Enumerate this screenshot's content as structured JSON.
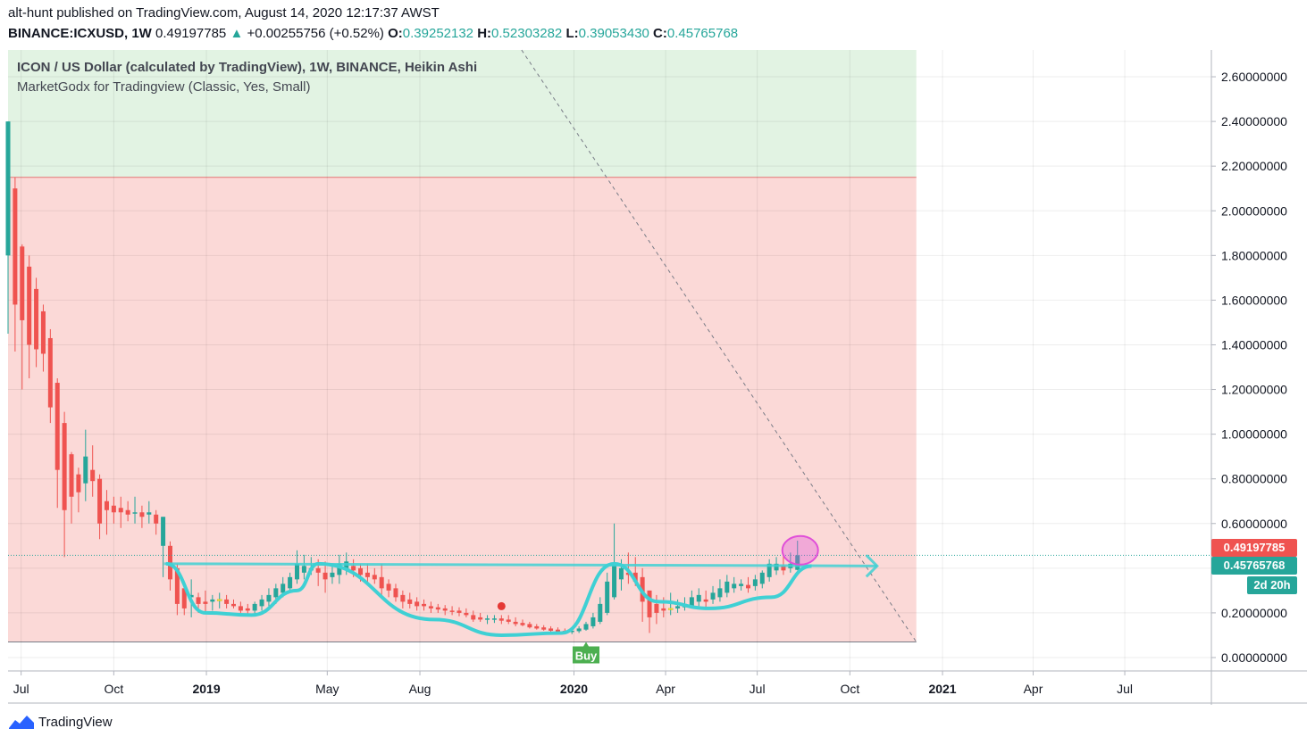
{
  "header": {
    "line1": "alt-hunt published on TradingView.com, August 14, 2020 12:17:37 AWST",
    "symbol": "BINANCE:ICXUSD, 1W",
    "last_price": "0.49197785",
    "change_arrow": "▲",
    "change": "+0.00255756 (+0.52%)",
    "o_label": "O:",
    "o_value": "0.39252132",
    "h_label": "H:",
    "h_value": "0.52303282",
    "l_label": "L:",
    "l_value": "0.39053430",
    "c_label": "C:",
    "c_value": "0.45765768"
  },
  "legend": {
    "series": "ICON / US Dollar (calculated by TradingView), 1W, BINANCE, Heikin Ashi",
    "indicator": "MarketGodx for Tradingview (Classic, Yes, Small)"
  },
  "price_tags": {
    "last": "0.49197785",
    "close": "0.45765768",
    "countdown": "2d 20h"
  },
  "buy_label": "Buy",
  "footer": {
    "brand": "TradingView",
    "logo_icon": "tradingview-logo-icon"
  },
  "colors": {
    "up": "#26a69a",
    "down": "#ef5350",
    "neutral": "#ffeb3b",
    "green_zone": "#e2f3e3",
    "red_zone": "#fbd9d7",
    "pattern": "#3fd0d4",
    "highlight": "#e04fd8",
    "last_tag": "#ef5350",
    "close_tag": "#26a69a"
  },
  "chart_data": {
    "type": "candlestick",
    "title": "ICON / US Dollar (calculated by TradingView), 1W, BINANCE, Heikin Ashi",
    "y_ticks": [
      "2.60000000",
      "2.40000000",
      "2.20000000",
      "2.00000000",
      "1.80000000",
      "1.60000000",
      "1.40000000",
      "1.20000000",
      "1.00000000",
      "0.80000000",
      "0.60000000",
      "0.40000000",
      "0.20000000",
      "0.00000000"
    ],
    "y_tick_values": [
      2.6,
      2.4,
      2.2,
      2.0,
      1.8,
      1.6,
      1.4,
      1.2,
      1.0,
      0.8,
      0.6,
      0.4,
      0.2,
      0.0
    ],
    "x_ticks": [
      {
        "label": "Jul",
        "date": "2018-07-01",
        "bold": false
      },
      {
        "label": "Oct",
        "date": "2018-10-01",
        "bold": false
      },
      {
        "label": "2019",
        "date": "2019-01-01",
        "bold": true
      },
      {
        "label": "May",
        "date": "2019-05-01",
        "bold": false
      },
      {
        "label": "Aug",
        "date": "2019-08-01",
        "bold": false
      },
      {
        "label": "2020",
        "date": "2020-01-01",
        "bold": true
      },
      {
        "label": "Apr",
        "date": "2020-04-01",
        "bold": false
      },
      {
        "label": "Jul",
        "date": "2020-07-01",
        "bold": false
      },
      {
        "label": "Oct",
        "date": "2020-10-01",
        "bold": false
      },
      {
        "label": "2021",
        "date": "2021-01-01",
        "bold": true
      },
      {
        "label": "Apr",
        "date": "2021-04-01",
        "bold": false
      },
      {
        "label": "Jul",
        "date": "2021-07-01",
        "bold": false
      }
    ],
    "ylim": [
      -0.06,
      2.72
    ],
    "xlim": [
      "2018-06-18",
      "2021-09-25"
    ],
    "grid": true,
    "zones": [
      {
        "name": "green-zone",
        "from_date": "2018-06-18",
        "to_date": "2020-12-06",
        "low": 2.15,
        "high": 2.72
      },
      {
        "name": "red-zone",
        "from_date": "2018-06-18",
        "to_date": "2020-12-06",
        "low": 0.07,
        "high": 2.15
      }
    ],
    "horizontal_line_value": 0.45765768,
    "buy_signal": {
      "date": "2020-01-13",
      "value": 0.07
    },
    "red_marker": {
      "date": "2019-10-21",
      "value": 0.23
    },
    "highlight_circle": {
      "date": "2020-08-10",
      "value": 0.48
    },
    "trendline": [
      [
        "2019-11-10",
        2.72
      ],
      [
        "2020-12-06",
        0.07
      ]
    ],
    "candles": [
      {
        "d": "2018-06-18",
        "o": 1.8,
        "h": 2.4,
        "l": 1.45,
        "c": 2.4
      },
      {
        "d": "2018-06-25",
        "o": 2.1,
        "h": 2.15,
        "l": 1.37,
        "c": 1.58
      },
      {
        "d": "2018-07-02",
        "o": 1.84,
        "h": 1.85,
        "l": 1.2,
        "c": 1.51
      },
      {
        "d": "2018-07-09",
        "o": 1.75,
        "h": 1.8,
        "l": 1.25,
        "c": 1.4
      },
      {
        "d": "2018-07-16",
        "o": 1.65,
        "h": 1.7,
        "l": 1.3,
        "c": 1.38
      },
      {
        "d": "2018-07-23",
        "o": 1.55,
        "h": 1.58,
        "l": 1.28,
        "c": 1.36
      },
      {
        "d": "2018-07-30",
        "o": 1.43,
        "h": 1.47,
        "l": 1.05,
        "c": 1.12
      },
      {
        "d": "2018-08-06",
        "o": 1.23,
        "h": 1.25,
        "l": 0.67,
        "c": 0.84
      },
      {
        "d": "2018-08-13",
        "o": 1.05,
        "h": 1.1,
        "l": 0.45,
        "c": 0.66
      },
      {
        "d": "2018-08-20",
        "o": 0.91,
        "h": 0.92,
        "l": 0.6,
        "c": 0.72
      },
      {
        "d": "2018-08-27",
        "o": 0.82,
        "h": 0.85,
        "l": 0.65,
        "c": 0.74
      },
      {
        "d": "2018-09-03",
        "o": 0.78,
        "h": 1.02,
        "l": 0.7,
        "c": 0.9
      },
      {
        "d": "2018-09-10",
        "o": 0.84,
        "h": 0.95,
        "l": 0.72,
        "c": 0.79
      },
      {
        "d": "2018-09-17",
        "o": 0.8,
        "h": 0.82,
        "l": 0.53,
        "c": 0.6
      },
      {
        "d": "2018-09-24",
        "o": 0.7,
        "h": 0.75,
        "l": 0.55,
        "c": 0.66
      },
      {
        "d": "2018-10-01",
        "o": 0.68,
        "h": 0.72,
        "l": 0.6,
        "c": 0.65
      },
      {
        "d": "2018-10-08",
        "o": 0.67,
        "h": 0.72,
        "l": 0.58,
        "c": 0.65
      },
      {
        "d": "2018-10-15",
        "o": 0.66,
        "h": 0.7,
        "l": 0.61,
        "c": 0.64
      },
      {
        "d": "2018-10-22",
        "o": 0.65,
        "h": 0.72,
        "l": 0.6,
        "c": 0.65
      },
      {
        "d": "2018-10-29",
        "o": 0.65,
        "h": 0.68,
        "l": 0.58,
        "c": 0.63
      },
      {
        "d": "2018-11-05",
        "o": 0.64,
        "h": 0.7,
        "l": 0.6,
        "c": 0.65
      },
      {
        "d": "2018-11-12",
        "o": 0.64,
        "h": 0.66,
        "l": 0.55,
        "c": 0.6
      },
      {
        "d": "2018-11-19",
        "o": 0.5,
        "h": 0.63,
        "l": 0.36,
        "c": 0.63
      },
      {
        "d": "2018-11-26",
        "o": 0.5,
        "h": 0.52,
        "l": 0.3,
        "c": 0.35
      },
      {
        "d": "2018-12-03",
        "o": 0.4,
        "h": 0.42,
        "l": 0.19,
        "c": 0.24
      },
      {
        "d": "2018-12-10",
        "o": 0.31,
        "h": 0.33,
        "l": 0.19,
        "c": 0.22
      },
      {
        "d": "2018-12-17",
        "o": 0.27,
        "h": 0.35,
        "l": 0.18,
        "c": 0.28
      },
      {
        "d": "2018-12-24",
        "o": 0.27,
        "h": 0.29,
        "l": 0.2,
        "c": 0.24
      },
      {
        "d": "2018-12-31",
        "o": 0.25,
        "h": 0.3,
        "l": 0.2,
        "c": 0.24
      },
      {
        "d": "2019-01-07",
        "o": 0.25,
        "h": 0.28,
        "l": 0.21,
        "c": 0.26
      },
      {
        "d": "2019-01-14",
        "o": 0.26,
        "h": 0.29,
        "l": 0.22,
        "c": 0.26
      },
      {
        "d": "2019-01-21",
        "o": 0.26,
        "h": 0.28,
        "l": 0.22,
        "c": 0.24
      },
      {
        "d": "2019-01-28",
        "o": 0.24,
        "h": 0.26,
        "l": 0.22,
        "c": 0.23
      },
      {
        "d": "2019-02-04",
        "o": 0.23,
        "h": 0.25,
        "l": 0.2,
        "c": 0.21
      },
      {
        "d": "2019-02-11",
        "o": 0.22,
        "h": 0.24,
        "l": 0.19,
        "c": 0.21
      },
      {
        "d": "2019-02-18",
        "o": 0.21,
        "h": 0.25,
        "l": 0.19,
        "c": 0.24
      },
      {
        "d": "2019-02-25",
        "o": 0.23,
        "h": 0.28,
        "l": 0.21,
        "c": 0.26
      },
      {
        "d": "2019-03-04",
        "o": 0.25,
        "h": 0.31,
        "l": 0.23,
        "c": 0.28
      },
      {
        "d": "2019-03-11",
        "o": 0.27,
        "h": 0.33,
        "l": 0.24,
        "c": 0.31
      },
      {
        "d": "2019-03-18",
        "o": 0.29,
        "h": 0.36,
        "l": 0.27,
        "c": 0.33
      },
      {
        "d": "2019-03-25",
        "o": 0.31,
        "h": 0.38,
        "l": 0.3,
        "c": 0.36
      },
      {
        "d": "2019-04-01",
        "o": 0.35,
        "h": 0.48,
        "l": 0.33,
        "c": 0.42
      },
      {
        "d": "2019-04-08",
        "o": 0.38,
        "h": 0.46,
        "l": 0.35,
        "c": 0.41
      },
      {
        "d": "2019-04-15",
        "o": 0.39,
        "h": 0.45,
        "l": 0.37,
        "c": 0.4
      },
      {
        "d": "2019-04-22",
        "o": 0.4,
        "h": 0.44,
        "l": 0.32,
        "c": 0.38
      },
      {
        "d": "2019-04-29",
        "o": 0.38,
        "h": 0.43,
        "l": 0.29,
        "c": 0.35
      },
      {
        "d": "2019-05-06",
        "o": 0.36,
        "h": 0.42,
        "l": 0.33,
        "c": 0.38
      },
      {
        "d": "2019-05-13",
        "o": 0.37,
        "h": 0.46,
        "l": 0.33,
        "c": 0.42
      },
      {
        "d": "2019-05-20",
        "o": 0.4,
        "h": 0.47,
        "l": 0.37,
        "c": 0.43
      },
      {
        "d": "2019-05-27",
        "o": 0.41,
        "h": 0.44,
        "l": 0.36,
        "c": 0.39
      },
      {
        "d": "2019-06-03",
        "o": 0.4,
        "h": 0.42,
        "l": 0.34,
        "c": 0.37
      },
      {
        "d": "2019-06-10",
        "o": 0.38,
        "h": 0.42,
        "l": 0.33,
        "c": 0.36
      },
      {
        "d": "2019-06-17",
        "o": 0.37,
        "h": 0.4,
        "l": 0.33,
        "c": 0.35
      },
      {
        "d": "2019-06-24",
        "o": 0.36,
        "h": 0.42,
        "l": 0.28,
        "c": 0.31
      },
      {
        "d": "2019-07-01",
        "o": 0.33,
        "h": 0.35,
        "l": 0.27,
        "c": 0.3
      },
      {
        "d": "2019-07-08",
        "o": 0.31,
        "h": 0.33,
        "l": 0.25,
        "c": 0.27
      },
      {
        "d": "2019-07-15",
        "o": 0.28,
        "h": 0.3,
        "l": 0.22,
        "c": 0.25
      },
      {
        "d": "2019-07-22",
        "o": 0.26,
        "h": 0.29,
        "l": 0.22,
        "c": 0.24
      },
      {
        "d": "2019-07-29",
        "o": 0.25,
        "h": 0.27,
        "l": 0.21,
        "c": 0.23
      },
      {
        "d": "2019-08-05",
        "o": 0.24,
        "h": 0.26,
        "l": 0.21,
        "c": 0.23
      },
      {
        "d": "2019-08-12",
        "o": 0.23,
        "h": 0.25,
        "l": 0.2,
        "c": 0.22
      },
      {
        "d": "2019-08-19",
        "o": 0.225,
        "h": 0.24,
        "l": 0.2,
        "c": 0.215
      },
      {
        "d": "2019-08-26",
        "o": 0.22,
        "h": 0.235,
        "l": 0.19,
        "c": 0.21
      },
      {
        "d": "2019-09-02",
        "o": 0.21,
        "h": 0.23,
        "l": 0.19,
        "c": 0.205
      },
      {
        "d": "2019-09-09",
        "o": 0.21,
        "h": 0.225,
        "l": 0.185,
        "c": 0.2
      },
      {
        "d": "2019-09-16",
        "o": 0.2,
        "h": 0.22,
        "l": 0.18,
        "c": 0.19
      },
      {
        "d": "2019-09-23",
        "o": 0.19,
        "h": 0.21,
        "l": 0.16,
        "c": 0.17
      },
      {
        "d": "2019-09-30",
        "o": 0.18,
        "h": 0.2,
        "l": 0.16,
        "c": 0.17
      },
      {
        "d": "2019-10-07",
        "o": 0.17,
        "h": 0.19,
        "l": 0.15,
        "c": 0.175
      },
      {
        "d": "2019-10-14",
        "o": 0.17,
        "h": 0.19,
        "l": 0.155,
        "c": 0.175
      },
      {
        "d": "2019-10-21",
        "o": 0.175,
        "h": 0.19,
        "l": 0.15,
        "c": 0.165
      },
      {
        "d": "2019-10-28",
        "o": 0.17,
        "h": 0.19,
        "l": 0.15,
        "c": 0.16
      },
      {
        "d": "2019-11-04",
        "o": 0.16,
        "h": 0.18,
        "l": 0.14,
        "c": 0.15
      },
      {
        "d": "2019-11-11",
        "o": 0.155,
        "h": 0.17,
        "l": 0.14,
        "c": 0.145
      },
      {
        "d": "2019-11-18",
        "o": 0.15,
        "h": 0.16,
        "l": 0.13,
        "c": 0.135
      },
      {
        "d": "2019-11-25",
        "o": 0.14,
        "h": 0.15,
        "l": 0.125,
        "c": 0.13
      },
      {
        "d": "2019-12-02",
        "o": 0.135,
        "h": 0.145,
        "l": 0.12,
        "c": 0.125
      },
      {
        "d": "2019-12-09",
        "o": 0.13,
        "h": 0.14,
        "l": 0.115,
        "c": 0.12
      },
      {
        "d": "2019-12-16",
        "o": 0.125,
        "h": 0.135,
        "l": 0.11,
        "c": 0.115
      },
      {
        "d": "2019-12-23",
        "o": 0.12,
        "h": 0.13,
        "l": 0.11,
        "c": 0.115
      },
      {
        "d": "2019-12-30",
        "o": 0.115,
        "h": 0.13,
        "l": 0.105,
        "c": 0.12
      },
      {
        "d": "2020-01-06",
        "o": 0.118,
        "h": 0.14,
        "l": 0.11,
        "c": 0.13
      },
      {
        "d": "2020-01-13",
        "o": 0.125,
        "h": 0.16,
        "l": 0.12,
        "c": 0.15
      },
      {
        "d": "2020-01-20",
        "o": 0.14,
        "h": 0.2,
        "l": 0.13,
        "c": 0.18
      },
      {
        "d": "2020-01-27",
        "o": 0.16,
        "h": 0.27,
        "l": 0.15,
        "c": 0.24
      },
      {
        "d": "2020-02-03",
        "o": 0.2,
        "h": 0.38,
        "l": 0.19,
        "c": 0.34
      },
      {
        "d": "2020-02-10",
        "o": 0.27,
        "h": 0.6,
        "l": 0.26,
        "c": 0.42
      },
      {
        "d": "2020-02-17",
        "o": 0.35,
        "h": 0.44,
        "l": 0.3,
        "c": 0.4
      },
      {
        "d": "2020-02-24",
        "o": 0.38,
        "h": 0.47,
        "l": 0.33,
        "c": 0.37
      },
      {
        "d": "2020-03-02",
        "o": 0.38,
        "h": 0.45,
        "l": 0.32,
        "c": 0.34
      },
      {
        "d": "2020-03-09",
        "o": 0.36,
        "h": 0.4,
        "l": 0.16,
        "c": 0.25
      },
      {
        "d": "2020-03-16",
        "o": 0.3,
        "h": 0.3,
        "l": 0.11,
        "c": 0.18
      },
      {
        "d": "2020-03-23",
        "o": 0.24,
        "h": 0.28,
        "l": 0.15,
        "c": 0.2
      },
      {
        "d": "2020-03-30",
        "o": 0.22,
        "h": 0.27,
        "l": 0.18,
        "c": 0.21
      },
      {
        "d": "2020-04-06",
        "o": 0.22,
        "h": 0.29,
        "l": 0.19,
        "c": 0.22
      },
      {
        "d": "2020-04-13",
        "o": 0.22,
        "h": 0.26,
        "l": 0.2,
        "c": 0.23
      },
      {
        "d": "2020-04-20",
        "o": 0.225,
        "h": 0.27,
        "l": 0.21,
        "c": 0.24
      },
      {
        "d": "2020-04-27",
        "o": 0.23,
        "h": 0.3,
        "l": 0.22,
        "c": 0.27
      },
      {
        "d": "2020-05-04",
        "o": 0.25,
        "h": 0.31,
        "l": 0.23,
        "c": 0.28
      },
      {
        "d": "2020-05-11",
        "o": 0.26,
        "h": 0.3,
        "l": 0.22,
        "c": 0.25
      },
      {
        "d": "2020-05-18",
        "o": 0.26,
        "h": 0.32,
        "l": 0.24,
        "c": 0.29
      },
      {
        "d": "2020-05-25",
        "o": 0.27,
        "h": 0.35,
        "l": 0.25,
        "c": 0.31
      },
      {
        "d": "2020-06-01",
        "o": 0.29,
        "h": 0.37,
        "l": 0.27,
        "c": 0.34
      },
      {
        "d": "2020-06-08",
        "o": 0.31,
        "h": 0.36,
        "l": 0.29,
        "c": 0.33
      },
      {
        "d": "2020-06-15",
        "o": 0.32,
        "h": 0.35,
        "l": 0.3,
        "c": 0.33
      },
      {
        "d": "2020-06-22",
        "o": 0.325,
        "h": 0.36,
        "l": 0.29,
        "c": 0.31
      },
      {
        "d": "2020-06-29",
        "o": 0.32,
        "h": 0.37,
        "l": 0.3,
        "c": 0.35
      },
      {
        "d": "2020-07-06",
        "o": 0.33,
        "h": 0.39,
        "l": 0.31,
        "c": 0.38
      },
      {
        "d": "2020-07-13",
        "o": 0.36,
        "h": 0.44,
        "l": 0.34,
        "c": 0.42
      },
      {
        "d": "2020-07-20",
        "o": 0.39,
        "h": 0.45,
        "l": 0.37,
        "c": 0.42
      },
      {
        "d": "2020-07-27",
        "o": 0.41,
        "h": 0.46,
        "l": 0.37,
        "c": 0.39
      },
      {
        "d": "2020-08-03",
        "o": 0.4,
        "h": 0.47,
        "l": 0.38,
        "c": 0.42
      },
      {
        "d": "2020-08-10",
        "o": 0.39252132,
        "h": 0.52303282,
        "l": 0.3905343,
        "c": 0.45765768
      }
    ]
  }
}
